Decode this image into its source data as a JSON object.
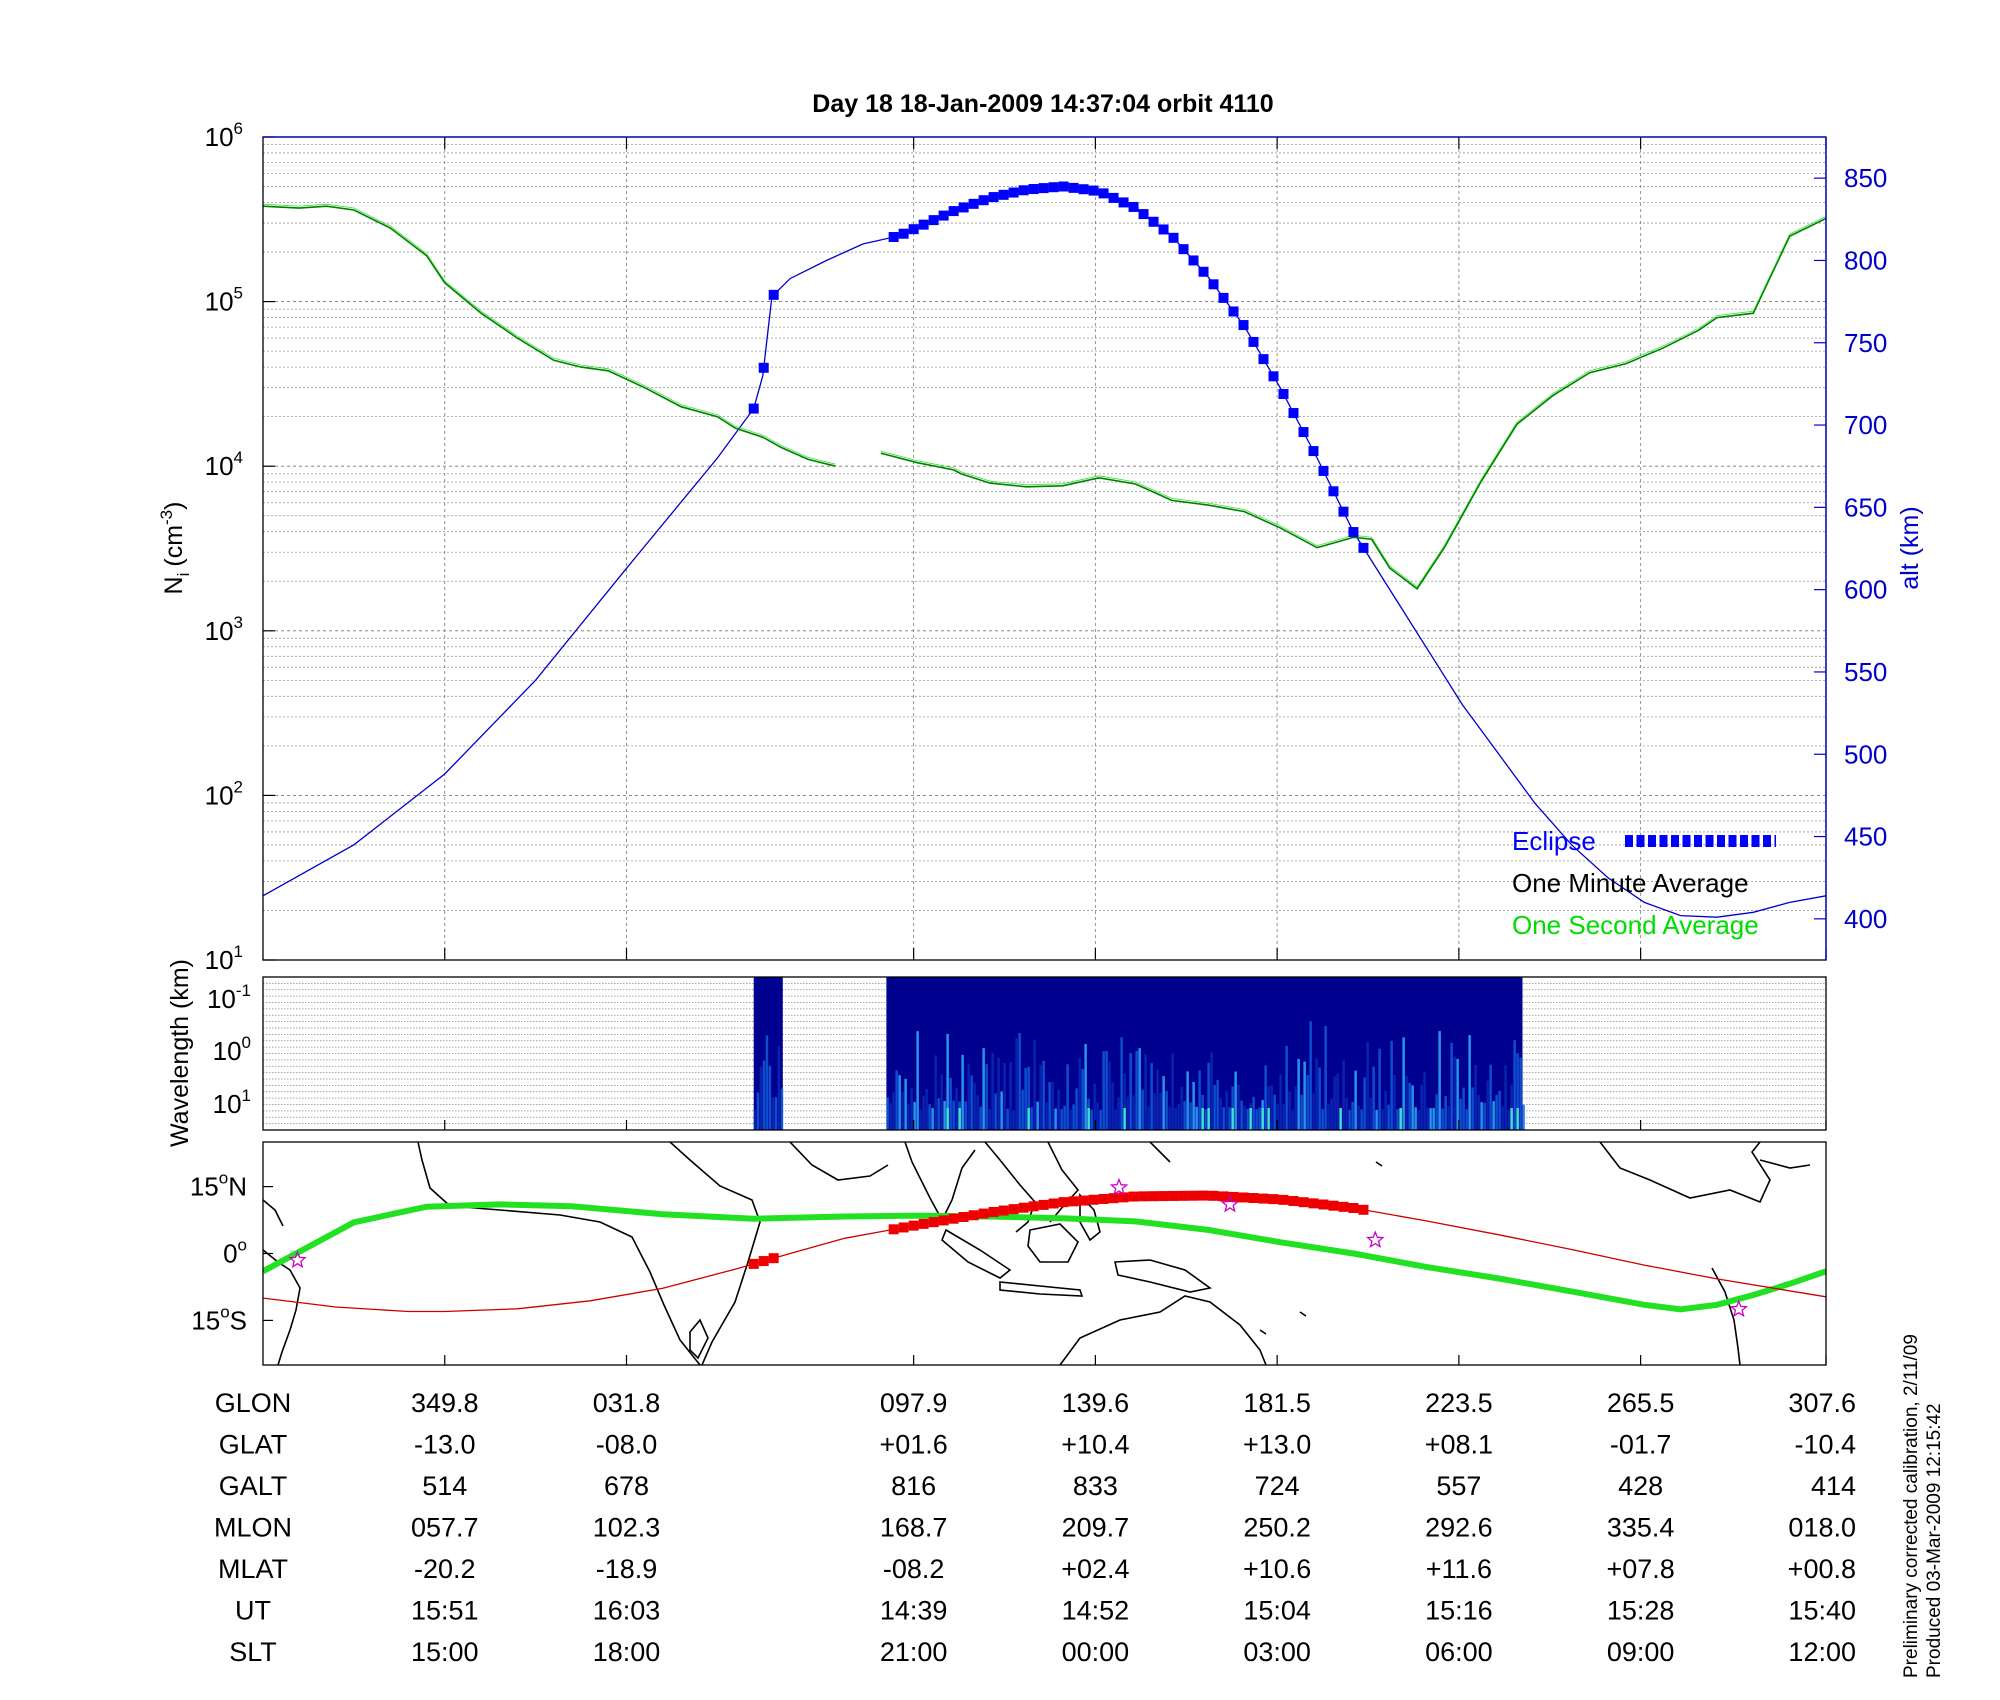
{
  "title": "Day 18  18-Jan-2009 14:37:04   orbit 4110",
  "colors": {
    "density": "#008000",
    "density_second": "#00dd00",
    "altitude": "#0000cc",
    "eclipse": "#0000ff",
    "track": "#cc0000",
    "equator": "#22e022",
    "star": "#cc00cc",
    "grid": "#999999"
  },
  "footnote": [
    "Preliminary corrected calibration, 2/11/09",
    "Produced 03-Mar-2009 12:15:42"
  ],
  "chart_data": [
    {
      "type": "line",
      "name": "ion-density-altitude",
      "yscale": "log",
      "ylabel_base": "N",
      "ylabel_sub": "i",
      "ylabel_unit": "(cm",
      "ylabel_exp": "-3",
      "ylabel_close": ")",
      "ylim": [
        10,
        1000000
      ],
      "yticks": [
        {
          "base": "10",
          "exp": "1",
          "value": 10
        },
        {
          "base": "10",
          "exp": "2",
          "value": 100
        },
        {
          "base": "10",
          "exp": "3",
          "value": 1000
        },
        {
          "base": "10",
          "exp": "4",
          "value": 10000
        },
        {
          "base": "10",
          "exp": "5",
          "value": 100000
        },
        {
          "base": "10",
          "exp": "6",
          "value": 1000000
        }
      ],
      "y2label": "alt (km)",
      "y2lim": [
        375,
        875
      ],
      "y2ticks": [
        "400",
        "450",
        "500",
        "550",
        "600",
        "650",
        "700",
        "750",
        "800",
        "850"
      ],
      "xlim": [
        0,
        8.6
      ],
      "legend": {
        "position": "bottom-right",
        "entries": [
          "Eclipse",
          "One Minute Average",
          "One Second Average"
        ]
      },
      "density": {
        "x": [
          0,
          0.2,
          0.35,
          0.5,
          0.7,
          0.9,
          1.0,
          1.2,
          1.4,
          1.6,
          1.75,
          1.9,
          2.1,
          2.3,
          2.5,
          2.6,
          2.75,
          2.85,
          3.0,
          3.15,
          3.2,
          3.4,
          3.6,
          3.8,
          3.84,
          4.0,
          4.2,
          4.4,
          4.6,
          4.8,
          5.0,
          5.2,
          5.4,
          5.6,
          5.8,
          6.0,
          6.1,
          6.2,
          6.35,
          6.5,
          6.7,
          6.9,
          7.1,
          7.3,
          7.5,
          7.7,
          7.9,
          8.0,
          8.2,
          8.4,
          8.6
        ],
        "values": [
          380000,
          370000,
          380000,
          360000,
          280000,
          190000,
          130000,
          85000,
          60000,
          44000,
          40000,
          38000,
          30000,
          23000,
          20000,
          17000,
          15000,
          13000,
          11000,
          10000,
          null,
          12000,
          10500,
          9500,
          9000,
          7900,
          7500,
          7600,
          8500,
          7800,
          6200,
          5800,
          5300,
          4200,
          3200,
          3700,
          3600,
          2400,
          1800,
          3200,
          8000,
          18000,
          27000,
          37000,
          42000,
          52000,
          67000,
          80000,
          85000,
          250000,
          320000
        ]
      },
      "altitude": {
        "x": [
          0,
          0.5,
          1.0,
          1.5,
          2.0,
          2.5,
          2.7,
          2.75,
          2.8,
          2.9,
          3.1,
          3.3,
          3.5,
          3.6,
          3.8,
          4.0,
          4.2,
          4.4,
          4.6,
          4.8,
          5.0,
          5.2,
          5.4,
          5.6,
          5.8,
          6.0,
          6.2,
          6.4,
          6.6,
          6.8,
          7.0,
          7.2,
          7.4,
          7.6,
          7.8,
          8.0,
          8.2,
          8.4,
          8.6
        ],
        "values": [
          414,
          445,
          488,
          545,
          613,
          680,
          710,
          730,
          778,
          789,
          800,
          810,
          815,
          820,
          830,
          838,
          843,
          845,
          842,
          832,
          815,
          790,
          760,
          722,
          680,
          635,
          600,
          565,
          530,
          500,
          470,
          445,
          425,
          410,
          402,
          401,
          404,
          410,
          414
        ]
      },
      "eclipse_segments": [
        [
          2.7,
          2.86
        ],
        [
          3.47,
          6.08
        ]
      ]
    },
    {
      "type": "heatmap",
      "name": "wavelength-spectrogram",
      "ylabel": "Wavelength (km)",
      "yscale": "log",
      "yticks": [
        {
          "base": "10",
          "exp": "-1"
        },
        {
          "base": "10",
          "exp": "0"
        },
        {
          "base": "10",
          "exp": "1"
        }
      ],
      "data_segments": [
        [
          2.7,
          2.86
        ],
        [
          3.43,
          6.93
        ]
      ]
    },
    {
      "type": "line",
      "name": "geographic-track",
      "yticks": [
        {
          "label": "15",
          "suffix": "N",
          "value": 15
        },
        {
          "label": "0",
          "suffix": "",
          "value": 0
        },
        {
          "label": "15",
          "suffix": "S",
          "value": -15
        }
      ],
      "ylim": [
        -25,
        25
      ],
      "track": {
        "x": [
          0,
          0.4,
          0.8,
          1.0,
          1.4,
          1.8,
          2.2,
          2.6,
          2.9,
          3.2,
          3.6,
          4.0,
          4.4,
          4.8,
          5.2,
          5.6,
          6.0,
          6.4,
          6.8,
          7.2,
          7.6,
          8.0,
          8.6
        ],
        "values": [
          -10,
          -12,
          -13,
          -13,
          -12.4,
          -10.6,
          -7.8,
          -3.5,
          0,
          3.4,
          6.4,
          9.2,
          11.5,
          12.8,
          13,
          12.1,
          10.2,
          7.3,
          4.2,
          0.9,
          -2.6,
          -5.7,
          -9.7
        ]
      },
      "eclipse_segments": [
        [
          2.7,
          2.86
        ],
        [
          3.47,
          6.08
        ]
      ],
      "magnetic_equator": {
        "x": [
          0,
          0.5,
          0.9,
          1.3,
          1.7,
          2.2,
          2.7,
          3.2,
          3.6,
          4.0,
          4.4,
          4.8,
          5.2,
          5.6,
          6.0,
          6.4,
          6.8,
          7.2,
          7.6,
          7.8,
          8.0,
          8.2,
          8.4,
          8.6
        ],
        "values": [
          -4,
          7,
          10.5,
          11,
          10.6,
          8.8,
          7.8,
          8.3,
          8.5,
          8.3,
          7.9,
          7.2,
          5.3,
          2.5,
          0,
          -3,
          -5.6,
          -8.5,
          -11.5,
          -12.5,
          -11.5,
          -9.3,
          -6.8,
          -4
        ]
      },
      "stars": {
        "x": [
          0.19,
          4.71,
          5.32,
          6.12,
          8.12
        ],
        "values": [
          -1.5,
          14.8,
          11,
          3,
          -12.5
        ]
      }
    }
  ],
  "table": {
    "columns_x": [
      1.0,
      2.0,
      3.58,
      4.58,
      5.58,
      6.58,
      7.58,
      8.6
    ],
    "rows": [
      {
        "label": "GLON",
        "values": [
          "349.8",
          "031.8",
          "097.9",
          "139.6",
          "181.5",
          "223.5",
          "265.5",
          "307.6"
        ]
      },
      {
        "label": "GLAT",
        "values": [
          "-13.0",
          "-08.0",
          "+01.6",
          "+10.4",
          "+13.0",
          "+08.1",
          "-01.7",
          "-10.4"
        ]
      },
      {
        "label": "GALT",
        "values": [
          "514",
          "678",
          "816",
          "833",
          "724",
          "557",
          "428",
          "414"
        ]
      },
      {
        "label": "MLON",
        "values": [
          "057.7",
          "102.3",
          "168.7",
          "209.7",
          "250.2",
          "292.6",
          "335.4",
          "018.0"
        ]
      },
      {
        "label": "MLAT",
        "values": [
          "-20.2",
          "-18.9",
          "-08.2",
          "+02.4",
          "+10.6",
          "+11.6",
          "+07.8",
          "+00.8"
        ]
      },
      {
        "label": "UT",
        "values": [
          "15:51",
          "16:03",
          "14:39",
          "14:52",
          "15:04",
          "15:16",
          "15:28",
          "15:40"
        ]
      },
      {
        "label": "SLT",
        "values": [
          "15:00",
          "18:00",
          "21:00",
          "00:00",
          "03:00",
          "06:00",
          "09:00",
          "12:00"
        ]
      }
    ]
  }
}
